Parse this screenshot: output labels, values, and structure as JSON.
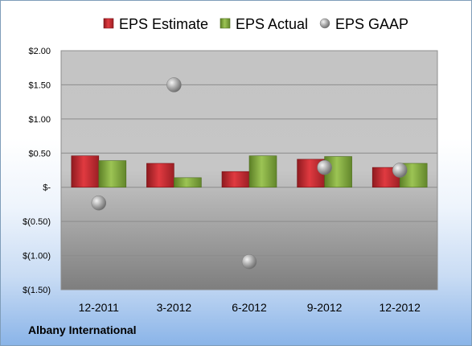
{
  "company": "Albany International",
  "chart_data": {
    "type": "bar",
    "categories": [
      "12-2011",
      "3-2012",
      "6-2012",
      "9-2012",
      "12-2012"
    ],
    "series": [
      {
        "name": "EPS Estimate",
        "kind": "bar",
        "color": "#c0272d",
        "values": [
          0.46,
          0.35,
          0.23,
          0.41,
          0.29
        ]
      },
      {
        "name": "EPS Actual",
        "kind": "bar",
        "color": "#7da33a",
        "values": [
          0.39,
          0.14,
          0.46,
          0.45,
          0.35
        ]
      },
      {
        "name": "EPS GAAP",
        "kind": "scatter",
        "color": "#a9a9a9",
        "values": [
          -0.23,
          1.5,
          -1.09,
          0.29,
          0.25
        ]
      }
    ],
    "yticks": [
      2.0,
      1.5,
      1.0,
      0.5,
      0,
      -0.5,
      -1.0,
      -1.5
    ],
    "ytick_labels": [
      "$2.00",
      "$1.50",
      "$1.00",
      "$0.50",
      "$-",
      "$(0.50)",
      "$(1.00)",
      "$(1.50)"
    ],
    "ylim": [
      -1.5,
      2.0
    ],
    "grid": true,
    "legend_position": "top"
  }
}
